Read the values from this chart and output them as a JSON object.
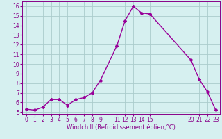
{
  "x": [
    0,
    1,
    2,
    3,
    4,
    5,
    6,
    7,
    8,
    9,
    11,
    12,
    13,
    14,
    15,
    20,
    21,
    22,
    23
  ],
  "y": [
    5.3,
    5.2,
    5.5,
    6.3,
    6.3,
    5.7,
    6.3,
    6.5,
    7.0,
    8.3,
    11.9,
    14.5,
    16.0,
    15.3,
    15.2,
    10.4,
    8.4,
    7.1,
    5.2
  ],
  "line_color": "#990099",
  "marker": "D",
  "marker_size": 2,
  "bg_color": "#d6f0f0",
  "grid_color": "#aacccc",
  "xlabel": "Windchill (Refroidissement éolien,°C)",
  "xlabel_fontsize": 6.0,
  "xlim": [
    -0.5,
    23.5
  ],
  "ylim": [
    4.8,
    16.5
  ],
  "yticks": [
    5,
    6,
    7,
    8,
    9,
    10,
    11,
    12,
    13,
    14,
    15,
    16
  ],
  "xticks": [
    0,
    1,
    2,
    3,
    4,
    5,
    6,
    7,
    8,
    9,
    11,
    12,
    13,
    14,
    15,
    20,
    21,
    22,
    23
  ],
  "tick_fontsize": 5.5,
  "tick_color": "#880088"
}
